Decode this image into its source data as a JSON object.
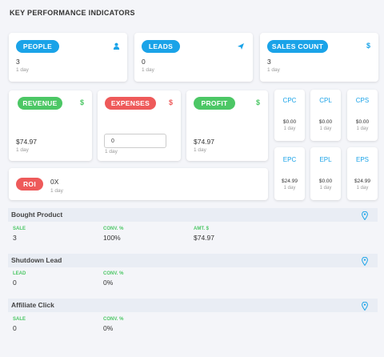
{
  "page_title": "KEY PERFORMANCE INDICATORS",
  "colors": {
    "blue": "#1aa3e8",
    "green": "#4cc765",
    "red": "#ee5a5a"
  },
  "kpi_top": [
    {
      "label": "PEOPLE",
      "value": "3",
      "period": "1 day",
      "icon": "user-icon"
    },
    {
      "label": "LEADS",
      "value": "0",
      "period": "1 day",
      "icon": "paper-plane-icon"
    },
    {
      "label": "SALES COUNT",
      "value": "3",
      "period": "1 day",
      "icon": "dollar-icon"
    }
  ],
  "kpi_mid": {
    "revenue": {
      "label": "REVENUE",
      "value": "$74.97",
      "period": "1 day",
      "icon": "dollar-icon"
    },
    "expenses": {
      "label": "EXPENSES",
      "input_value": "0",
      "period": "1 day",
      "icon": "dollar-icon"
    },
    "profit": {
      "label": "PROFIT",
      "value": "$74.97",
      "period": "1 day",
      "icon": "dollar-icon"
    }
  },
  "roi": {
    "label": "ROI",
    "value": "0X",
    "period": "1 day"
  },
  "small_metrics": [
    {
      "label": "CPC",
      "value": "$0.00",
      "period": "1 day"
    },
    {
      "label": "CPL",
      "value": "$0.00",
      "period": "1 day"
    },
    {
      "label": "CPS",
      "value": "$0.00",
      "period": "1 day"
    },
    {
      "label": "EPC",
      "value": "$24.99",
      "period": "1 day"
    },
    {
      "label": "EPL",
      "value": "$0.00",
      "period": "1 day"
    },
    {
      "label": "EPS",
      "value": "$24.99",
      "period": "1 day"
    }
  ],
  "sections": [
    {
      "title": "Bought Product",
      "cols": [
        {
          "label": "SALE",
          "value": "3"
        },
        {
          "label": "CONV. %",
          "value": "100%"
        },
        {
          "label": "AMT. $",
          "value": "$74.97"
        }
      ]
    },
    {
      "title": "Shutdown Lead",
      "cols": [
        {
          "label": "LEAD",
          "value": "0"
        },
        {
          "label": "CONV. %",
          "value": "0%"
        }
      ]
    },
    {
      "title": "Affiliate Click",
      "cols": [
        {
          "label": "SALE",
          "value": "0"
        },
        {
          "label": "CONV. %",
          "value": "0%"
        }
      ]
    }
  ]
}
